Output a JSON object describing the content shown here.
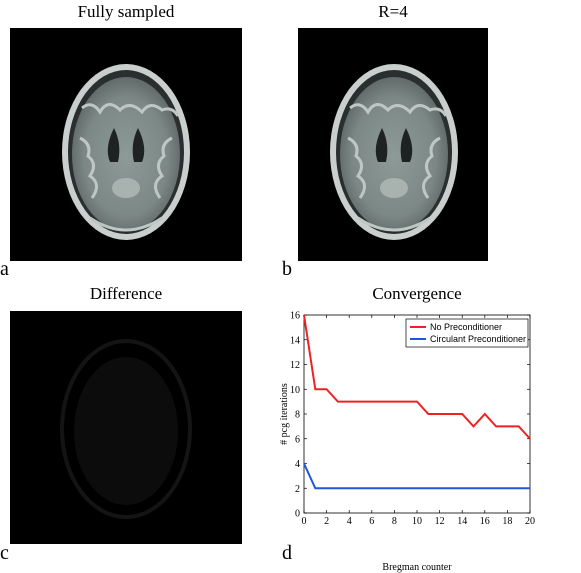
{
  "panels": {
    "a": {
      "title": "Fully sampled",
      "label": "a"
    },
    "b": {
      "title": "R=4",
      "label": "b"
    },
    "c": {
      "title": "Difference",
      "label": "c"
    },
    "d": {
      "title": "Convergence",
      "label": "d"
    }
  },
  "colors": {
    "no_pre": "#ee2222",
    "circ_pre": "#2255dd"
  },
  "chart_data": {
    "type": "line",
    "title": "Convergence",
    "xlabel": "Bregman counter",
    "ylabel": "# pcg iterations",
    "xlim": [
      0,
      20
    ],
    "ylim": [
      0,
      16
    ],
    "xticks": [
      0,
      2,
      4,
      6,
      8,
      10,
      12,
      14,
      16,
      18,
      20
    ],
    "yticks": [
      0,
      2,
      4,
      6,
      8,
      10,
      12,
      14,
      16
    ],
    "grid": false,
    "legend_position": "top-right",
    "series": [
      {
        "name": "No Preconditioner",
        "x": [
          0,
          1,
          2,
          3,
          4,
          5,
          6,
          7,
          8,
          9,
          10,
          11,
          12,
          13,
          14,
          15,
          16,
          17,
          18,
          19,
          20
        ],
        "y": [
          16,
          10,
          10,
          9,
          9,
          9,
          9,
          9,
          9,
          9,
          9,
          8,
          8,
          8,
          8,
          7,
          8,
          7,
          7,
          7,
          6
        ]
      },
      {
        "name": "Circulant Preconditioner",
        "x": [
          0,
          1,
          2,
          3,
          4,
          5,
          6,
          7,
          8,
          9,
          10,
          11,
          12,
          13,
          14,
          15,
          16,
          17,
          18,
          19,
          20
        ],
        "y": [
          4,
          2,
          2,
          2,
          2,
          2,
          2,
          2,
          2,
          2,
          2,
          2,
          2,
          2,
          2,
          2,
          2,
          2,
          2,
          2,
          2
        ]
      }
    ]
  }
}
